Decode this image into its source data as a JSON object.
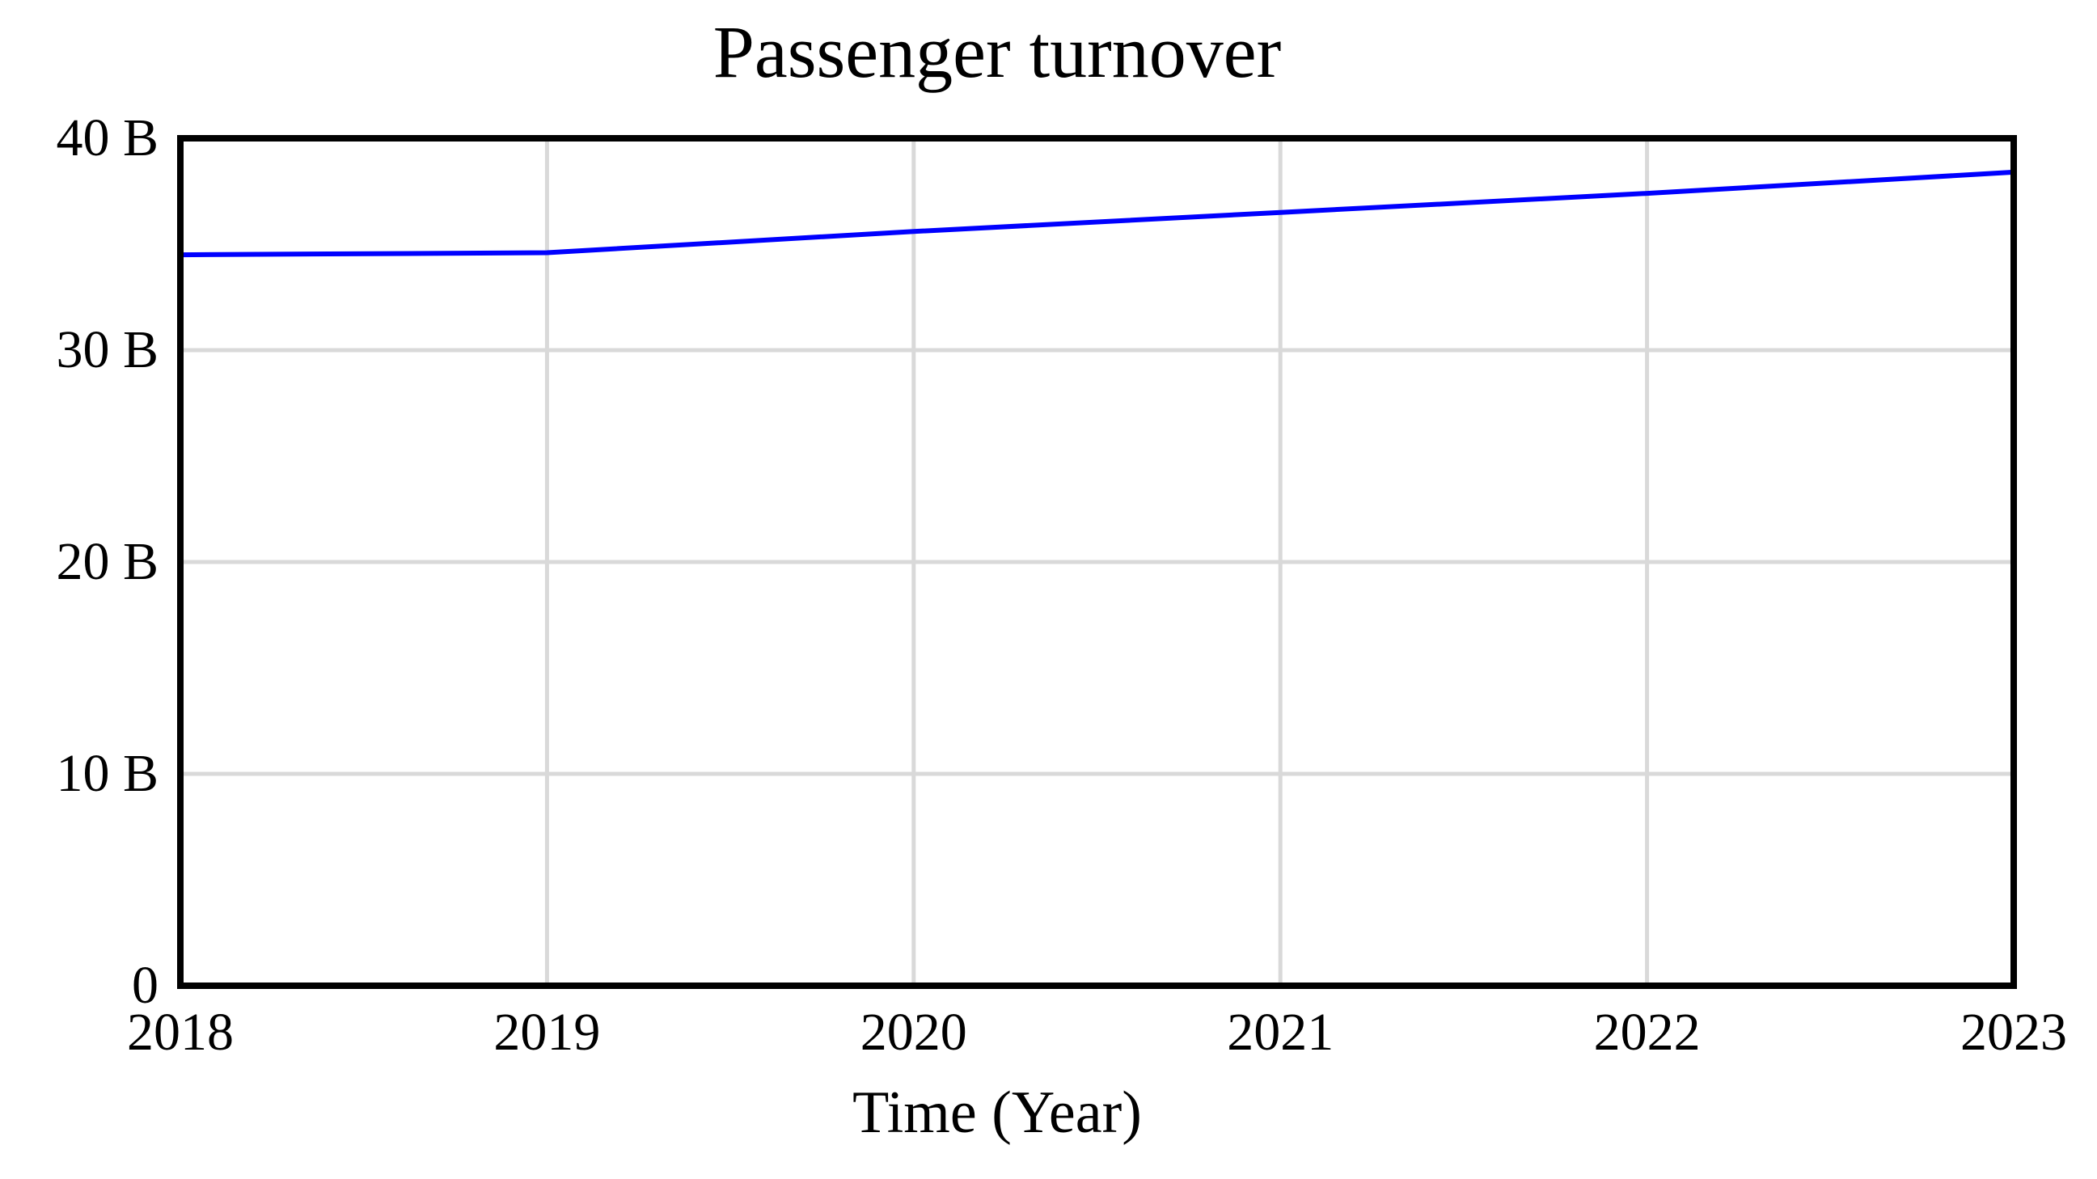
{
  "chart_data": {
    "type": "line",
    "title": "Passenger turnover",
    "xlabel": "Time (Year)",
    "ylabel": "",
    "x": [
      2018,
      2019,
      2020,
      2021,
      2022,
      2023
    ],
    "series": [
      {
        "name": "Passenger turnover",
        "color": "#0000ff",
        "values": [
          34.5,
          34.6,
          35.6,
          36.5,
          37.4,
          38.4
        ]
      }
    ],
    "y_unit": "B",
    "xlim": [
      2018,
      2023
    ],
    "ylim": [
      0,
      40
    ],
    "grid": true,
    "legend_position": "none",
    "xtick_values": [
      2018,
      2019,
      2020,
      2021,
      2022,
      2023
    ],
    "xtick_labels": [
      "2018",
      "2019",
      "2020",
      "2021",
      "2022",
      "2023"
    ],
    "ytick_values": [
      0,
      10,
      20,
      30,
      40
    ],
    "ytick_labels": [
      "0",
      "10 B",
      "20 B",
      "30 B",
      "40 B"
    ],
    "colors": {
      "line": "#0000ff",
      "grid": "#d9d9d9",
      "border": "#000000",
      "background": "#ffffff",
      "text": "#000000"
    }
  }
}
